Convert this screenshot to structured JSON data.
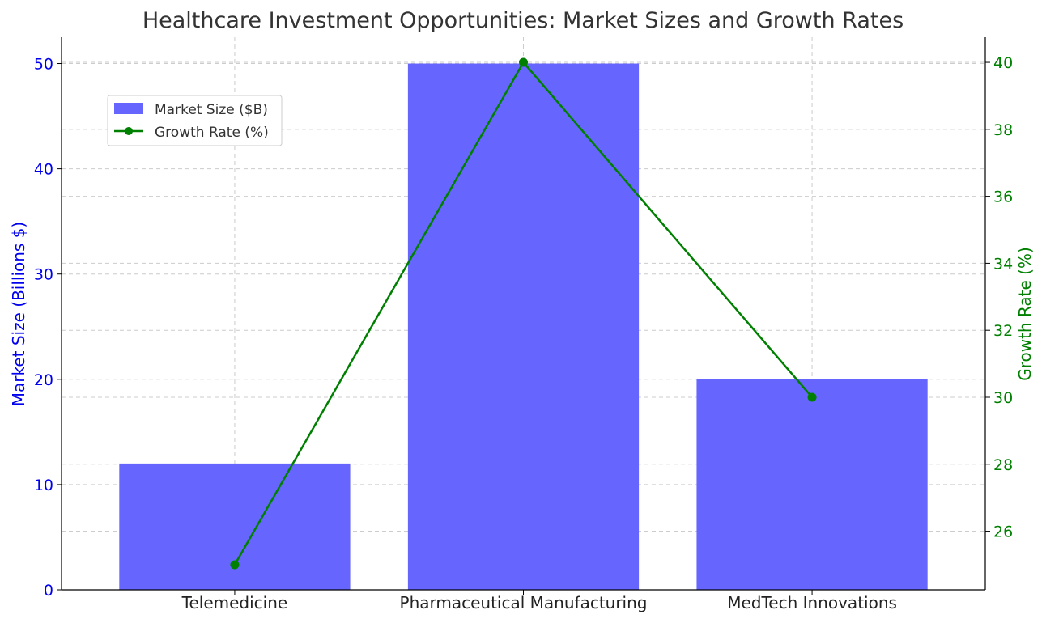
{
  "chart_data": {
    "type": "bar",
    "title": "Healthcare Investment Opportunities: Market Sizes and Growth Rates",
    "categories": [
      "Telemedicine",
      "Pharmaceutical Manufacturing",
      "MedTech Innovations"
    ],
    "series": [
      {
        "name": "Market Size ($B)",
        "type": "bar",
        "axis": "left",
        "values": [
          12,
          50,
          20
        ],
        "color": "#6666ff"
      },
      {
        "name": "Growth Rate (%)",
        "type": "line",
        "axis": "right",
        "values": [
          25,
          40,
          30
        ],
        "color": "#008000"
      }
    ],
    "ylabel": "Market Size (Billions $)",
    "ylim": [
      0,
      52.5
    ],
    "yticks": [
      0,
      10,
      20,
      30,
      40,
      50
    ],
    "y2label": "Growth Rate (%)",
    "y2lim": [
      24.25,
      40.75
    ],
    "y2ticks": [
      26,
      28,
      30,
      32,
      34,
      36,
      38,
      40
    ],
    "grid": true,
    "legend_position": "upper-left",
    "colors": {
      "left_axis": "#0000ee",
      "right_axis": "#008000"
    }
  }
}
